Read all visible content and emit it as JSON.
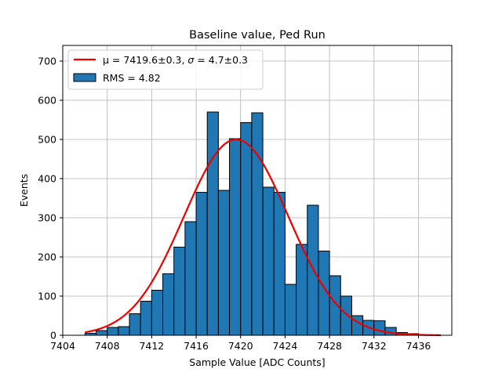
{
  "colors": {
    "bar_fill": "#1f77b4",
    "bar_edge": "#000000",
    "fit_line": "#ee0000",
    "grid": "#b0b0b0",
    "axes": "#000000"
  },
  "chart_data": {
    "type": "bar",
    "title": "Baseline value, Ped Run",
    "xlabel": "Sample Value [ADC Counts]",
    "ylabel": "Events",
    "xlim": [
      7404,
      7439
    ],
    "ylim": [
      0,
      740
    ],
    "xticks": [
      7404,
      7408,
      7412,
      7416,
      7420,
      7424,
      7428,
      7432,
      7436
    ],
    "yticks": [
      0,
      100,
      200,
      300,
      400,
      500,
      600,
      700
    ],
    "grid": true,
    "legend_position": "top-left",
    "legend": [
      {
        "label_prefix": "μ = 7419.6±0.3, ",
        "label_sigma": "σ",
        "label_suffix": " = 4.7±0.3",
        "kind": "line"
      },
      {
        "label": "RMS = 4.82",
        "kind": "patch"
      }
    ],
    "bin_width": 1,
    "bins": [
      {
        "left": 7406,
        "count": 5
      },
      {
        "left": 7407,
        "count": 12
      },
      {
        "left": 7408,
        "count": 20
      },
      {
        "left": 7409,
        "count": 22
      },
      {
        "left": 7410,
        "count": 55
      },
      {
        "left": 7411,
        "count": 87
      },
      {
        "left": 7412,
        "count": 115
      },
      {
        "left": 7413,
        "count": 157
      },
      {
        "left": 7414,
        "count": 225
      },
      {
        "left": 7415,
        "count": 290
      },
      {
        "left": 7416,
        "count": 365
      },
      {
        "left": 7417,
        "count": 570
      },
      {
        "left": 7418,
        "count": 370
      },
      {
        "left": 7419,
        "count": 502
      },
      {
        "left": 7420,
        "count": 543
      },
      {
        "left": 7421,
        "count": 568
      },
      {
        "left": 7422,
        "count": 378
      },
      {
        "left": 7423,
        "count": 365
      },
      {
        "left": 7424,
        "count": 130
      },
      {
        "left": 7425,
        "count": 232
      },
      {
        "left": 7426,
        "count": 332
      },
      {
        "left": 7427,
        "count": 215
      },
      {
        "left": 7428,
        "count": 152
      },
      {
        "left": 7429,
        "count": 100
      },
      {
        "left": 7430,
        "count": 50
      },
      {
        "left": 7431,
        "count": 38
      },
      {
        "left": 7432,
        "count": 37
      },
      {
        "left": 7433,
        "count": 20
      },
      {
        "left": 7434,
        "count": 7
      },
      {
        "left": 7435,
        "count": 4
      }
    ],
    "fit": {
      "function": "gaussian",
      "mu": 7419.6,
      "sigma": 4.7,
      "amplitude": 500,
      "x_range": [
        7406,
        7438
      ]
    }
  }
}
